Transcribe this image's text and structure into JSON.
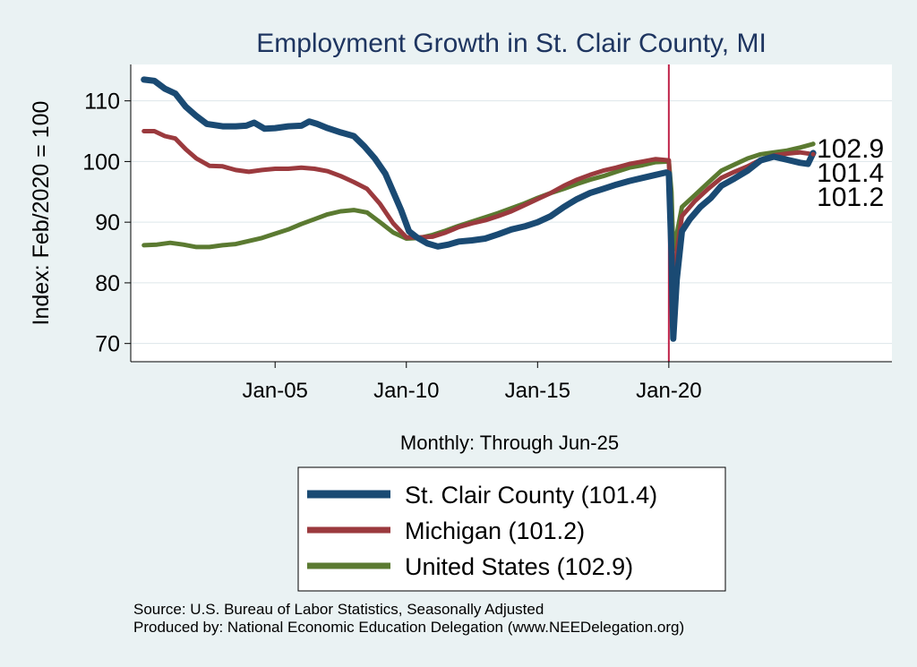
{
  "chart_data": {
    "type": "line",
    "title": "Employment Growth in St. Clair  County, MI",
    "xlabel": "Monthly: Through Jun-25",
    "ylabel": "Index: Feb/2020 = 100",
    "x_start": "Jan-00",
    "x_end": "Jun-25",
    "xlim": [
      1999.5,
      2028.5
    ],
    "ylim": [
      67,
      116
    ],
    "y_ticks": [
      70,
      80,
      90,
      100,
      110
    ],
    "x_ticks": [
      {
        "value": 2005,
        "label": "Jan-05"
      },
      {
        "value": 2010,
        "label": "Jan-10"
      },
      {
        "value": 2015,
        "label": "Jan-15"
      },
      {
        "value": 2020,
        "label": "Jan-20"
      }
    ],
    "reference_line": {
      "x": 2020.0,
      "color": "#c0244a"
    },
    "grid": true,
    "legend_position": "bottom",
    "series": [
      {
        "name": "St. Clair  County",
        "legend_label": "St. Clair  County (101.4)",
        "color": "#1a4a73",
        "last_value": 101.4,
        "last_label": "101.4",
        "points": [
          [
            2000.0,
            113.5
          ],
          [
            2000.4,
            113.3
          ],
          [
            2000.8,
            112.0
          ],
          [
            2001.2,
            111.2
          ],
          [
            2001.6,
            109.0
          ],
          [
            2002.0,
            107.5
          ],
          [
            2002.4,
            106.2
          ],
          [
            2003.0,
            105.8
          ],
          [
            2003.5,
            105.8
          ],
          [
            2003.9,
            105.9
          ],
          [
            2004.2,
            106.4
          ],
          [
            2004.6,
            105.4
          ],
          [
            2005.0,
            105.5
          ],
          [
            2005.5,
            105.8
          ],
          [
            2006.0,
            105.9
          ],
          [
            2006.3,
            106.6
          ],
          [
            2006.6,
            106.2
          ],
          [
            2007.0,
            105.5
          ],
          [
            2007.5,
            104.8
          ],
          [
            2008.0,
            104.2
          ],
          [
            2008.4,
            102.5
          ],
          [
            2008.8,
            100.5
          ],
          [
            2009.2,
            98.0
          ],
          [
            2009.5,
            95.0
          ],
          [
            2009.8,
            92.0
          ],
          [
            2010.1,
            88.5
          ],
          [
            2010.4,
            87.5
          ],
          [
            2010.8,
            86.5
          ],
          [
            2011.2,
            86.0
          ],
          [
            2011.6,
            86.3
          ],
          [
            2012.0,
            86.8
          ],
          [
            2012.5,
            87.0
          ],
          [
            2013.0,
            87.3
          ],
          [
            2013.5,
            88.0
          ],
          [
            2014.0,
            88.8
          ],
          [
            2014.5,
            89.3
          ],
          [
            2015.0,
            90.0
          ],
          [
            2015.5,
            91.0
          ],
          [
            2016.0,
            92.5
          ],
          [
            2016.5,
            93.8
          ],
          [
            2017.0,
            94.8
          ],
          [
            2017.5,
            95.5
          ],
          [
            2018.0,
            96.2
          ],
          [
            2018.5,
            96.8
          ],
          [
            2019.0,
            97.3
          ],
          [
            2019.5,
            97.8
          ],
          [
            2019.9,
            98.2
          ],
          [
            2020.0,
            98.0
          ],
          [
            2020.1,
            85.0
          ],
          [
            2020.17,
            70.8
          ],
          [
            2020.3,
            80.5
          ],
          [
            2020.5,
            88.5
          ],
          [
            2020.8,
            90.5
          ],
          [
            2021.2,
            92.5
          ],
          [
            2021.6,
            94.0
          ],
          [
            2022.0,
            96.0
          ],
          [
            2022.5,
            97.2
          ],
          [
            2023.0,
            98.5
          ],
          [
            2023.5,
            100.2
          ],
          [
            2024.0,
            100.8
          ],
          [
            2024.5,
            100.3
          ],
          [
            2025.0,
            99.8
          ],
          [
            2025.3,
            99.6
          ],
          [
            2025.5,
            101.4
          ]
        ]
      },
      {
        "name": "Michigan",
        "legend_label": "Michigan (101.2)",
        "color": "#9b3a3e",
        "last_value": 101.2,
        "last_label": "101.2",
        "points": [
          [
            2000.0,
            105.0
          ],
          [
            2000.4,
            105.0
          ],
          [
            2000.8,
            104.2
          ],
          [
            2001.2,
            103.8
          ],
          [
            2001.6,
            102.0
          ],
          [
            2002.0,
            100.5
          ],
          [
            2002.5,
            99.3
          ],
          [
            2003.0,
            99.2
          ],
          [
            2003.5,
            98.6
          ],
          [
            2004.0,
            98.3
          ],
          [
            2004.5,
            98.6
          ],
          [
            2005.0,
            98.8
          ],
          [
            2005.5,
            98.8
          ],
          [
            2006.0,
            99.0
          ],
          [
            2006.5,
            98.8
          ],
          [
            2007.0,
            98.4
          ],
          [
            2007.5,
            97.6
          ],
          [
            2008.0,
            96.6
          ],
          [
            2008.5,
            95.5
          ],
          [
            2009.0,
            93.0
          ],
          [
            2009.5,
            89.8
          ],
          [
            2010.0,
            87.5
          ],
          [
            2010.5,
            87.5
          ],
          [
            2011.0,
            87.6
          ],
          [
            2011.5,
            88.3
          ],
          [
            2012.0,
            89.2
          ],
          [
            2012.5,
            89.8
          ],
          [
            2013.0,
            90.3
          ],
          [
            2013.5,
            91.0
          ],
          [
            2014.0,
            91.8
          ],
          [
            2014.5,
            92.8
          ],
          [
            2015.0,
            93.8
          ],
          [
            2015.5,
            94.8
          ],
          [
            2016.0,
            96.0
          ],
          [
            2016.5,
            97.0
          ],
          [
            2017.0,
            97.8
          ],
          [
            2017.5,
            98.5
          ],
          [
            2018.0,
            99.0
          ],
          [
            2018.5,
            99.6
          ],
          [
            2019.0,
            100.0
          ],
          [
            2019.5,
            100.4
          ],
          [
            2020.0,
            100.2
          ],
          [
            2020.1,
            88.0
          ],
          [
            2020.17,
            74.5
          ],
          [
            2020.3,
            85.0
          ],
          [
            2020.5,
            91.0
          ],
          [
            2021.0,
            93.5
          ],
          [
            2021.5,
            95.5
          ],
          [
            2022.0,
            97.3
          ],
          [
            2022.5,
            98.3
          ],
          [
            2023.0,
            99.2
          ],
          [
            2023.5,
            100.3
          ],
          [
            2024.0,
            101.0
          ],
          [
            2024.5,
            101.3
          ],
          [
            2025.0,
            101.5
          ],
          [
            2025.5,
            101.2
          ]
        ]
      },
      {
        "name": "United States",
        "legend_label": "United States (102.9)",
        "color": "#5b7a31",
        "last_value": 102.9,
        "last_label": "102.9",
        "points": [
          [
            2000.0,
            86.2
          ],
          [
            2000.5,
            86.3
          ],
          [
            2001.0,
            86.6
          ],
          [
            2001.5,
            86.3
          ],
          [
            2002.0,
            85.9
          ],
          [
            2002.5,
            85.9
          ],
          [
            2003.0,
            86.2
          ],
          [
            2003.5,
            86.4
          ],
          [
            2004.0,
            86.9
          ],
          [
            2004.5,
            87.4
          ],
          [
            2005.0,
            88.1
          ],
          [
            2005.5,
            88.8
          ],
          [
            2006.0,
            89.7
          ],
          [
            2006.5,
            90.5
          ],
          [
            2007.0,
            91.3
          ],
          [
            2007.5,
            91.8
          ],
          [
            2008.0,
            92.0
          ],
          [
            2008.5,
            91.6
          ],
          [
            2009.0,
            90.0
          ],
          [
            2009.5,
            88.3
          ],
          [
            2010.0,
            87.3
          ],
          [
            2010.5,
            87.4
          ],
          [
            2011.0,
            87.9
          ],
          [
            2011.5,
            88.6
          ],
          [
            2012.0,
            89.4
          ],
          [
            2012.5,
            90.1
          ],
          [
            2013.0,
            90.8
          ],
          [
            2013.5,
            91.5
          ],
          [
            2014.0,
            92.3
          ],
          [
            2014.5,
            93.1
          ],
          [
            2015.0,
            94.0
          ],
          [
            2015.5,
            94.8
          ],
          [
            2016.0,
            95.5
          ],
          [
            2016.5,
            96.3
          ],
          [
            2017.0,
            97.0
          ],
          [
            2017.5,
            97.6
          ],
          [
            2018.0,
            98.3
          ],
          [
            2018.5,
            99.0
          ],
          [
            2019.0,
            99.4
          ],
          [
            2019.5,
            99.9
          ],
          [
            2020.0,
            100.0
          ],
          [
            2020.1,
            95.0
          ],
          [
            2020.17,
            85.5
          ],
          [
            2020.3,
            88.0
          ],
          [
            2020.5,
            92.5
          ],
          [
            2021.0,
            94.5
          ],
          [
            2021.5,
            96.5
          ],
          [
            2022.0,
            98.5
          ],
          [
            2022.5,
            99.5
          ],
          [
            2023.0,
            100.5
          ],
          [
            2023.5,
            101.2
          ],
          [
            2024.0,
            101.5
          ],
          [
            2024.5,
            101.8
          ],
          [
            2025.0,
            102.3
          ],
          [
            2025.5,
            102.9
          ]
        ]
      }
    ]
  },
  "footer": {
    "source": "Source: U.S. Bureau of Labor Statistics, Seasonally Adjusted",
    "produced_by": "Produced by: National Economic Education Delegation (www.NEEDelegation.org)"
  }
}
